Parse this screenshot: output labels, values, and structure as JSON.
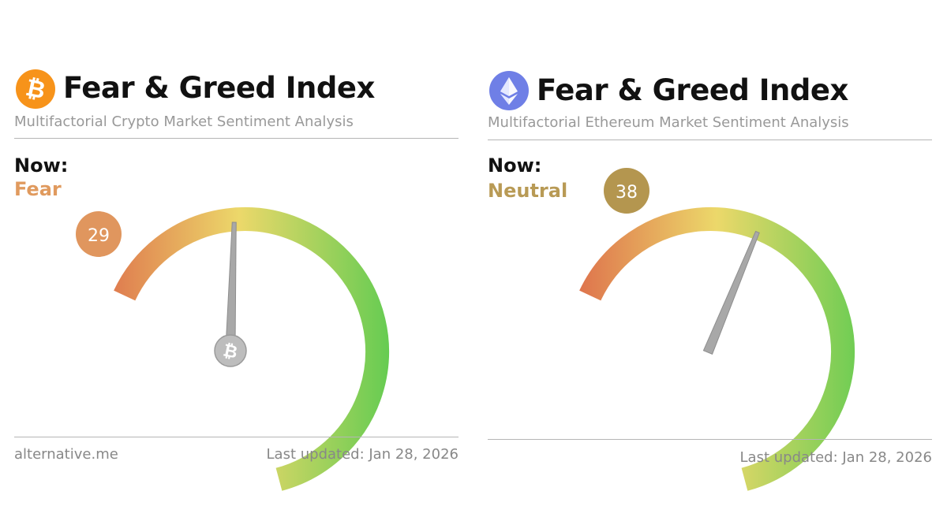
{
  "panels": [
    {
      "id": "btc",
      "coin_icon": "bitcoin-icon",
      "title": "Fear & Greed Index",
      "subtitle": "Multifactorial Crypto Market Sentiment Analysis",
      "now_label": "Now:",
      "state": "Fear",
      "state_color": "#e09a5e",
      "value": 29,
      "value_badge_color": "#e0965e",
      "footer_left": "alternative.me",
      "footer_right": "Last updated: Jan 28, 2026"
    },
    {
      "id": "eth",
      "coin_icon": "ethereum-icon",
      "title": "Fear & Greed Index",
      "subtitle": "Multifactorial Ethereum Market Sentiment Analysis",
      "now_label": "Now:",
      "state": "Neutral",
      "state_color": "#b89a55",
      "value": 38,
      "value_badge_color": "#b4964f",
      "footer_left": "",
      "footer_right": "Last updated: Jan 28, 2026"
    }
  ],
  "colors": {
    "bitcoin_orange": "#f7931a",
    "ethereum_purple": "#6f7fe6",
    "gauge_fear": "#dd6b4a",
    "gauge_mid": "#ecd86a",
    "gauge_greed": "#66cc52",
    "needle": "#a8a8a8"
  }
}
